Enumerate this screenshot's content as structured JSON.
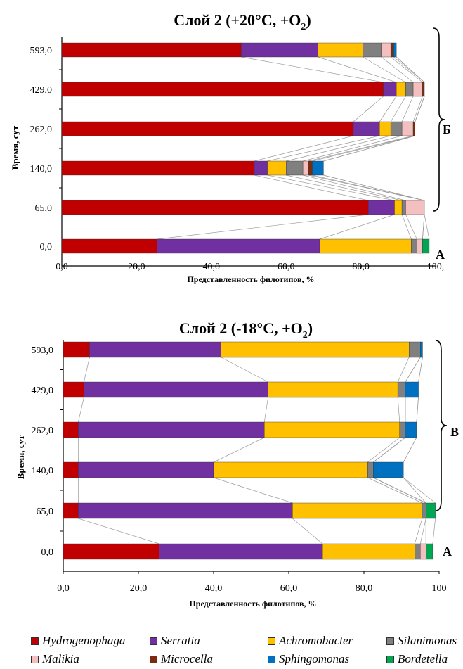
{
  "legend": {
    "hydrogenophaga": "Hydrogenophaga",
    "serratia": "Serratia",
    "achromobacter": "Achromobacter",
    "silanimonas": "Silanimonas",
    "malikia": "Malikia",
    "microcella": "Microcella",
    "sphingomonas": "Sphingomonas",
    "bordetella": "Bordetella"
  },
  "colors": {
    "Hydrogenophaga": "#C00000",
    "Serratia": "#7030A0",
    "Achromobacter": "#FFC000",
    "Silanimonas": "#808080",
    "Malikia": "#F4BFBF",
    "Microcella": "#7B2C0E",
    "Sphingomonas": "#0070C0",
    "Bordetella": "#00A651"
  },
  "chart_data": [
    {
      "type": "bar",
      "orientation": "horizontal",
      "stacked": true,
      "title": "Слой 2 (+20°C, +O",
      "title_sub": "2",
      "title_end": ")",
      "ylabel": "Время, сут",
      "xlabel": "Представленность филотипов, %",
      "xlim": [
        0,
        100
      ],
      "x_ticks": [
        "0,0",
        "20,0",
        "40,0",
        "60,0",
        "80,0",
        "100,"
      ],
      "categories": [
        "593,0",
        "429,0",
        "262,0",
        "140,0",
        "65,0",
        "0,0"
      ],
      "series": [
        {
          "name": "Hydrogenophaga",
          "values": [
            48.0,
            86.0,
            78.0,
            51.5,
            82.0,
            25.5
          ]
        },
        {
          "name": "Serratia",
          "values": [
            20.5,
            3.5,
            7.0,
            3.5,
            7.0,
            43.5
          ]
        },
        {
          "name": "Achromobacter",
          "values": [
            12.0,
            2.5,
            3.0,
            5.0,
            2.0,
            24.5
          ]
        },
        {
          "name": "Silanimonas",
          "values": [
            5.0,
            2.0,
            3.0,
            4.5,
            1.0,
            1.5
          ]
        },
        {
          "name": "Malikia",
          "values": [
            2.5,
            2.5,
            3.0,
            1.5,
            5.0,
            1.5
          ]
        },
        {
          "name": "Microcella",
          "values": [
            0.8,
            0.5,
            0.5,
            1.0,
            0.0,
            0.0
          ]
        },
        {
          "name": "Sphingomonas",
          "values": [
            0.7,
            0.0,
            0.0,
            3.0,
            0.0,
            0.0
          ]
        },
        {
          "name": "Bordetella",
          "values": [
            0.0,
            0.0,
            0.0,
            0.0,
            0.0,
            1.8
          ]
        }
      ],
      "groups": [
        {
          "label": "Б",
          "from": "593,0",
          "to": "65,0"
        },
        {
          "label": "A",
          "from": "0,0",
          "to": "0,0"
        }
      ]
    },
    {
      "type": "bar",
      "orientation": "horizontal",
      "stacked": true,
      "title": "Слой 2 (-18°C, +O",
      "title_sub": "2",
      "title_end": ")",
      "ylabel": "Время, сут",
      "xlabel": "Представленность филотипов, %",
      "xlim": [
        0,
        100
      ],
      "x_ticks": [
        "0,0",
        "20,0",
        "40,0",
        "60,0",
        "80,0",
        "100"
      ],
      "categories": [
        "593,0",
        "429,0",
        "262,0",
        "140,0",
        "65,0",
        "0,0"
      ],
      "series": [
        {
          "name": "Hydrogenophaga",
          "values": [
            7.0,
            5.5,
            4.0,
            4.0,
            4.0,
            25.5
          ]
        },
        {
          "name": "Serratia",
          "values": [
            35.0,
            49.0,
            49.5,
            36.0,
            57.0,
            43.5
          ]
        },
        {
          "name": "Achromobacter",
          "values": [
            50.0,
            34.5,
            36.0,
            41.0,
            34.5,
            24.5
          ]
        },
        {
          "name": "Silanimonas",
          "values": [
            3.0,
            2.0,
            1.5,
            1.5,
            1.0,
            1.5
          ]
        },
        {
          "name": "Malikia",
          "values": [
            0.0,
            0.0,
            0.0,
            0.0,
            0.0,
            1.5
          ]
        },
        {
          "name": "Microcella",
          "values": [
            0.0,
            0.0,
            0.0,
            0.0,
            0.0,
            0.0
          ]
        },
        {
          "name": "Sphingomonas",
          "values": [
            0.6,
            3.5,
            3.0,
            8.0,
            0.0,
            0.0
          ]
        },
        {
          "name": "Bordetella",
          "values": [
            0.0,
            0.0,
            0.0,
            0.0,
            2.5,
            1.8
          ]
        }
      ],
      "groups": [
        {
          "label": "B",
          "from": "593,0",
          "to": "65,0"
        },
        {
          "label": "A",
          "from": "0,0",
          "to": "0,0"
        }
      ]
    }
  ]
}
